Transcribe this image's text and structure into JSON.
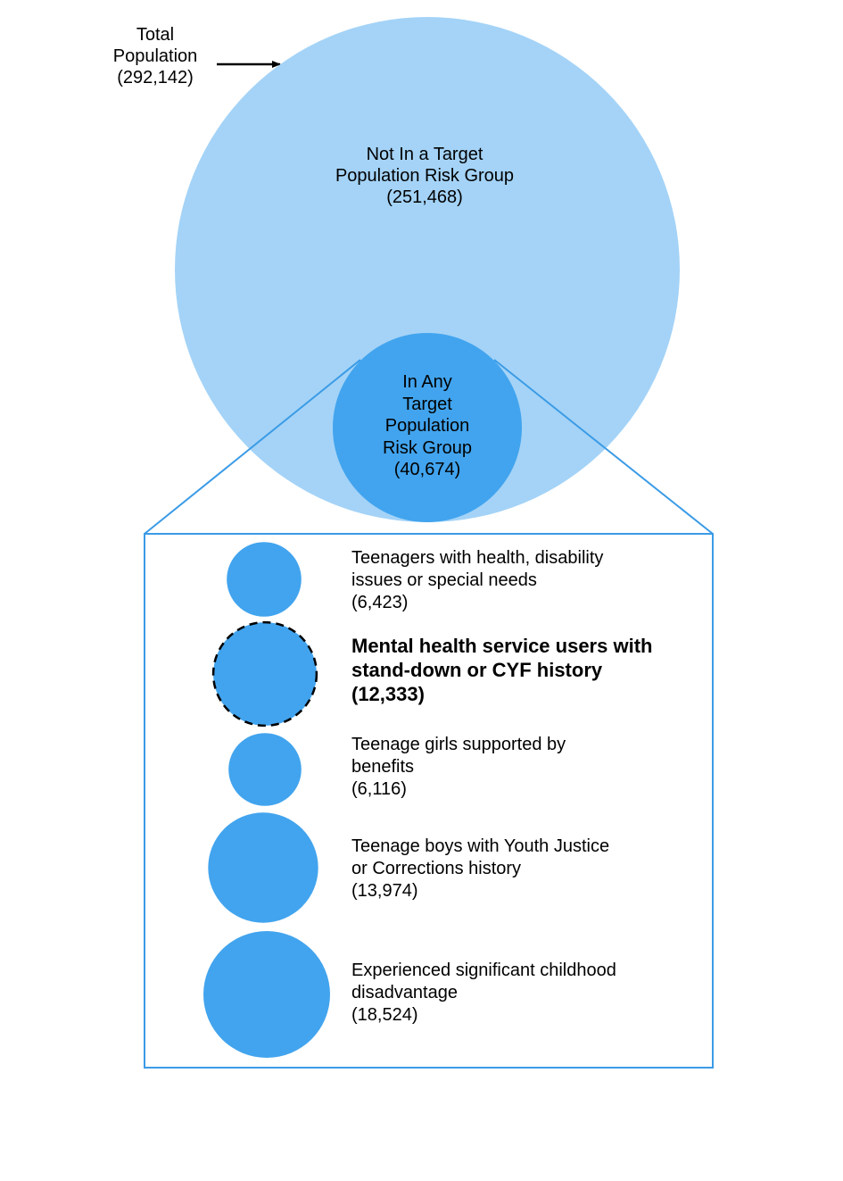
{
  "colors": {
    "outer_circle": "#a4d3f7",
    "inner_circle": "#42a4ee",
    "box_border": "#3b9be6",
    "text": "#000000"
  },
  "total": {
    "lines": [
      "Total",
      "Population",
      "(292,142)"
    ],
    "value": 292142
  },
  "not_in_group": {
    "lines": [
      "Not In a Target",
      "Population Risk Group",
      "(251,468)"
    ],
    "value": 251468
  },
  "in_group": {
    "lines": [
      "In Any",
      "Target",
      "Population",
      "Risk Group",
      "(40,674)"
    ],
    "value": 40674
  },
  "subgroups": [
    {
      "lines": [
        "Teenagers with health, disability",
        "issues or special needs",
        "(6,423)"
      ],
      "value": 6423,
      "highlighted": false
    },
    {
      "lines": [
        "Mental health service users with",
        "stand-down or CYF history",
        "(12,333)"
      ],
      "value": 12333,
      "highlighted": true
    },
    {
      "lines": [
        "Teenage girls supported by",
        "benefits",
        "(6,116)"
      ],
      "value": 6116,
      "highlighted": false
    },
    {
      "lines": [
        "Teenage boys with Youth Justice",
        "or Corrections history",
        "(13,974)"
      ],
      "value": 13974,
      "highlighted": false
    },
    {
      "lines": [
        "Experienced significant childhood",
        "disadvantage",
        "(18,524)"
      ],
      "value": 18524,
      "highlighted": false
    }
  ]
}
